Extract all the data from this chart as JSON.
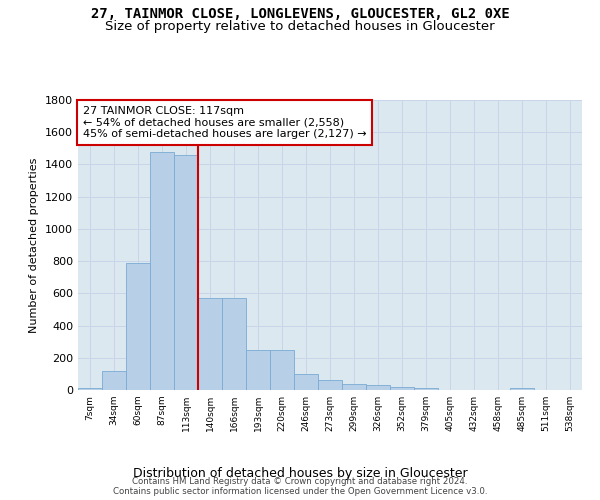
{
  "title_line1": "27, TAINMOR CLOSE, LONGLEVENS, GLOUCESTER, GL2 0XE",
  "title_line2": "Size of property relative to detached houses in Gloucester",
  "xlabel": "Distribution of detached houses by size in Gloucester",
  "ylabel": "Number of detached properties",
  "categories": [
    "7sqm",
    "34sqm",
    "60sqm",
    "87sqm",
    "113sqm",
    "140sqm",
    "166sqm",
    "193sqm",
    "220sqm",
    "246sqm",
    "273sqm",
    "299sqm",
    "326sqm",
    "352sqm",
    "379sqm",
    "405sqm",
    "432sqm",
    "458sqm",
    "485sqm",
    "511sqm",
    "538sqm"
  ],
  "values": [
    10,
    120,
    790,
    1480,
    1460,
    570,
    570,
    250,
    250,
    100,
    60,
    40,
    30,
    20,
    15,
    0,
    0,
    0,
    15,
    0,
    0
  ],
  "bar_color": "#b8cfe8",
  "bar_edge_color": "#7aaSd4",
  "vline_color": "#cc0000",
  "annotation_line1": "27 TAINMOR CLOSE: 117sqm",
  "annotation_line2": "← 54% of detached houses are smaller (2,558)",
  "annotation_line3": "45% of semi-detached houses are larger (2,127) →",
  "annotation_box_color": "#ffffff",
  "annotation_box_edge": "#cc0000",
  "footer_line1": "Contains HM Land Registry data © Crown copyright and database right 2024.",
  "footer_line2": "Contains public sector information licensed under the Open Government Licence v3.0.",
  "ylim": [
    0,
    1800
  ],
  "yticks": [
    0,
    200,
    400,
    600,
    800,
    1000,
    1200,
    1400,
    1600,
    1800
  ],
  "grid_color": "#c8d4e8",
  "bg_color": "#dce8f0",
  "title1_fontsize": 10,
  "title2_fontsize": 9.5
}
